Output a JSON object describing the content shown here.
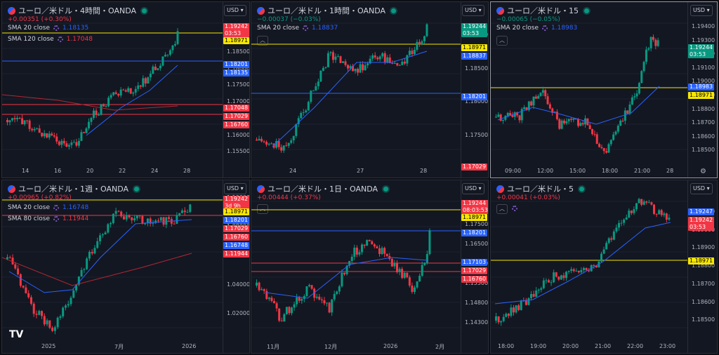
{
  "colors": {
    "up": "#089981",
    "down": "#f23645",
    "sma_blue": "#2962ff",
    "sma_red": "#b22833",
    "yellow": "#f7e600",
    "bg": "#131722"
  },
  "panes": [
    {
      "id": "p1",
      "title": "ユーロ／米ドル・4時間・OANDA",
      "currency": "USD",
      "change": "+0.00351 (+0.30%)",
      "trend": "up",
      "indicators": [
        {
          "label": "SMA 20 close",
          "value": "1.18135",
          "color": "#2962ff"
        },
        {
          "label": "SMA 120 close",
          "value": "1.17048",
          "color": "#f23645"
        }
      ],
      "yticks": [
        "1.19000",
        "1.18500",
        "1.18000",
        "1.17500",
        "1.17000",
        "1.16500",
        "1.16000",
        "1.15500"
      ],
      "xticks": [
        "14",
        "16",
        "20",
        "22",
        "24",
        "28"
      ],
      "tags": [
        {
          "text": "1.19242",
          "sub": "03:53",
          "color": "#f23645"
        },
        {
          "text": "1.18971",
          "color": "#f7e600"
        },
        {
          "text": "1.18201",
          "color": "#2962ff"
        },
        {
          "text": "1.18135",
          "color": "#2962ff"
        },
        {
          "text": "1.17048",
          "color": "#f23645"
        },
        {
          "text": "1.17029",
          "color": "#f23645"
        },
        {
          "text": "1.16760",
          "color": "#f23645"
        }
      ]
    },
    {
      "id": "p2",
      "title": "ユーロ／米ドル・1時間・OANDA",
      "currency": "USD",
      "change": "−0.00037 (−0.03%)",
      "trend": "down",
      "indicators": [
        {
          "label": "SMA 20 close",
          "value": "1.18837",
          "color": "#2962ff"
        }
      ],
      "yticks": [
        "1.19000",
        "1.18500",
        "1.18000",
        "1.17500"
      ],
      "xticks": [
        "24",
        "27",
        "28"
      ],
      "tags": [
        {
          "text": "1.19244",
          "sub": "03:53",
          "color": "#089981"
        },
        {
          "text": "1.18971",
          "color": "#f7e600"
        },
        {
          "text": "1.18837",
          "color": "#2962ff"
        },
        {
          "text": "1.18201",
          "color": "#2962ff"
        },
        {
          "text": "1.17029",
          "color": "#f23645"
        }
      ]
    },
    {
      "id": "p3",
      "title": "ユーロ／米ドル・15",
      "currency": "USD",
      "change": "−0.00065 (−0.05%)",
      "trend": "down",
      "indicators": [
        {
          "label": "SMA 20 close",
          "value": "1.18983",
          "color": "#2962ff"
        }
      ],
      "yticks": [
        "1.19400",
        "1.19300",
        "1.19200",
        "1.19100",
        "1.19000",
        "1.18900",
        "1.18800",
        "1.18700",
        "1.18600",
        "1.18500"
      ],
      "xticks": [
        "09:00",
        "12:00",
        "15:00",
        "18:00",
        "21:00",
        "28"
      ],
      "tags": [
        {
          "text": "1.19244",
          "sub": "03:53",
          "color": "#089981"
        },
        {
          "text": "1.18983",
          "color": "#2962ff"
        },
        {
          "text": "1.18971",
          "color": "#f7e600"
        }
      ]
    },
    {
      "id": "p4",
      "title": "ユーロ／米ドル・1週・OANDA",
      "currency": "USD",
      "change": "+0.00965 (+0.82%)",
      "trend": "up",
      "indicators": [
        {
          "label": "SMA 20 close",
          "value": "1.16748",
          "color": "#2962ff"
        },
        {
          "label": "SMA 80 close",
          "value": "1.11944",
          "color": "#f23645"
        }
      ],
      "yticks": [
        "1.10000",
        "1.08000",
        "1.06000",
        "1.04000",
        "1.02000"
      ],
      "xticks": [
        "2025",
        "7月",
        "2026"
      ],
      "tags": [
        {
          "text": "1.19242",
          "sub": "3d 9h",
          "color": "#f23645"
        },
        {
          "text": "1.18971",
          "color": "#f7e600"
        },
        {
          "text": "1.18201",
          "color": "#2962ff"
        },
        {
          "text": "1.17029",
          "color": "#f23645"
        },
        {
          "text": "1.16760",
          "color": "#f23645"
        },
        {
          "text": "1.16748",
          "color": "#2962ff"
        },
        {
          "text": "1.11944",
          "color": "#f23645"
        }
      ]
    },
    {
      "id": "p5",
      "title": "ユーロ／米ドル・1日・OANDA",
      "currency": "USD",
      "change": "+0.00444 (+0.37%)",
      "trend": "up",
      "indicators": [],
      "yticks": [
        "1.18000",
        "1.17500",
        "1.16500",
        "1.16000",
        "1.15500",
        "1.14800",
        "1.14300"
      ],
      "xticks": [
        "11月",
        "12月",
        "2026",
        "2月"
      ],
      "tags": [
        {
          "text": "1.19244",
          "sub": "08:03:53",
          "color": "#f23645"
        },
        {
          "text": "1.18971",
          "color": "#f7e600"
        },
        {
          "text": "1.18201",
          "color": "#2962ff"
        },
        {
          "text": "1.17103",
          "color": "#2962ff"
        },
        {
          "text": "1.17029",
          "color": "#f23645"
        },
        {
          "text": "1.16760",
          "color": "#f23645"
        }
      ]
    },
    {
      "id": "p6",
      "title": "ユーロ／米ドル・5",
      "currency": "USD",
      "change": "+0.00041 (+0.03%)",
      "trend": "up",
      "indicators": [],
      "yticks": [
        "1.19100",
        "1.19000",
        "1.18900",
        "1.18800",
        "1.18700",
        "1.18600",
        "1.18500"
      ],
      "xticks": [
        "18:00",
        "19:00",
        "20:00",
        "21:00",
        "22:00",
        "23:00"
      ],
      "tags": [
        {
          "text": "1.19247",
          "color": "#2962ff"
        },
        {
          "text": "1.19242",
          "sub": "03:53",
          "color": "#f23645"
        },
        {
          "text": "1.18971",
          "color": "#f7e600"
        }
      ]
    }
  ]
}
